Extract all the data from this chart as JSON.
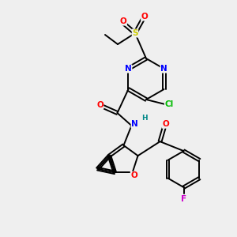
{
  "bg_color": "#efefef",
  "atom_colors": {
    "N": "#0000ff",
    "O": "#ff0000",
    "S": "#cccc00",
    "Cl": "#00bb00",
    "F": "#cc00cc",
    "H": "#008888",
    "C": "#000000"
  },
  "lw": 1.4,
  "fs": 7.5
}
